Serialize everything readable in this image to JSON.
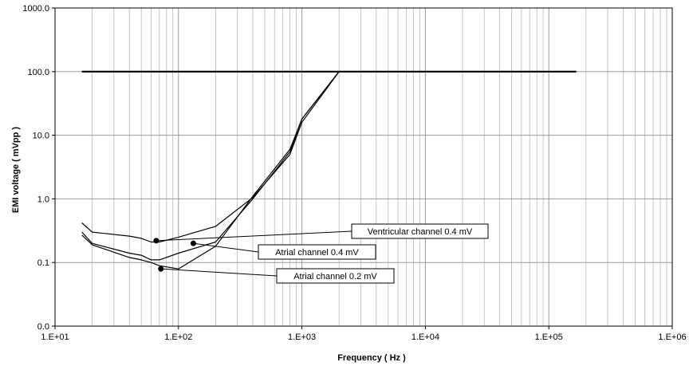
{
  "chart_data": {
    "type": "line",
    "xlabel": "Frequency ( Hz )",
    "ylabel": "EMI voltage ( mVpp )",
    "x_scale": "log",
    "y_scale": "log-with-zero",
    "xlim": [
      10,
      1000000
    ],
    "ylim_labels": [
      "0.0",
      "0.1",
      "1.0",
      "10.0",
      "100.0",
      "1000.0"
    ],
    "y_ticks": [
      0,
      0.1,
      1,
      10,
      100,
      1000
    ],
    "x_ticks": [
      10,
      100,
      1000,
      10000,
      100000,
      1000000
    ],
    "x_tick_labels": [
      "1.E+01",
      "1.E+02",
      "1.E+03",
      "1.E+04",
      "1.E+05",
      "1.E+06"
    ],
    "grid": true,
    "series": [
      {
        "name": "",
        "color": "#000000",
        "values": [
          [
            16.5,
            100
          ],
          [
            167000,
            100
          ]
        ]
      },
      {
        "name": "Ventricular channel 0.4 mV",
        "color": "#000000",
        "values": [
          [
            16.5,
            0.42
          ],
          [
            20,
            0.3
          ],
          [
            40,
            0.26
          ],
          [
            50,
            0.24
          ],
          [
            60,
            0.21
          ],
          [
            70,
            0.21
          ],
          [
            100,
            0.25
          ],
          [
            200,
            0.37
          ],
          [
            400,
            1.05
          ],
          [
            800,
            5.0
          ],
          [
            1000,
            16.0
          ],
          [
            2000,
            100
          ]
        ]
      },
      {
        "name": "Atrial channel 0.4 mV",
        "color": "#000000",
        "values": [
          [
            16.5,
            0.3
          ],
          [
            20,
            0.2
          ],
          [
            40,
            0.14
          ],
          [
            50,
            0.13
          ],
          [
            60,
            0.11
          ],
          [
            70,
            0.11
          ],
          [
            100,
            0.14
          ],
          [
            200,
            0.21
          ],
          [
            400,
            1.0
          ],
          [
            800,
            5.5
          ],
          [
            1000,
            18.0
          ],
          [
            2000,
            100
          ]
        ]
      },
      {
        "name": "Atrial channel 0.2 mV",
        "color": "#000000",
        "values": [
          [
            16.5,
            0.27
          ],
          [
            20,
            0.19
          ],
          [
            40,
            0.12
          ],
          [
            50,
            0.11
          ],
          [
            60,
            0.1
          ],
          [
            70,
            0.095
          ],
          [
            100,
            0.09
          ],
          [
            200,
            0.18
          ],
          [
            400,
            1.1
          ],
          [
            800,
            6.0
          ],
          [
            1000,
            18.0
          ],
          [
            2000,
            100
          ]
        ]
      }
    ],
    "annotations": [
      {
        "text": "Ventricular channel 0.4 mV",
        "series": 1,
        "marker": [
          66,
          0.22
        ]
      },
      {
        "text": "Atrial channel 0.4 mV",
        "series": 2,
        "marker": [
          132,
          0.2
        ]
      },
      {
        "text": "Atrial channel 0.2 mV",
        "series": 3,
        "marker": [
          72,
          0.09
        ]
      }
    ]
  }
}
